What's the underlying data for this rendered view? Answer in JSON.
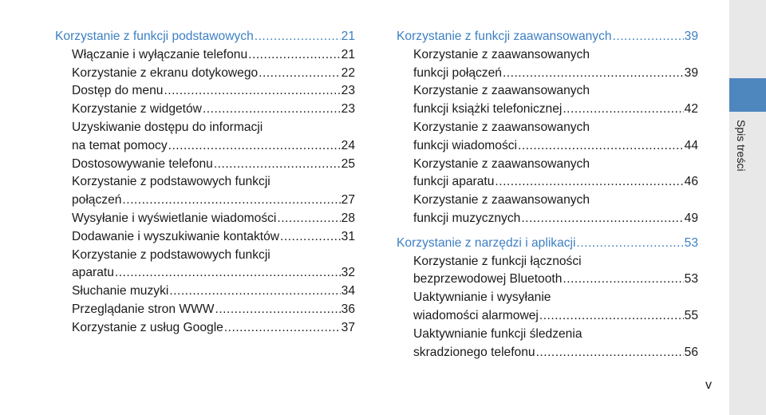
{
  "toc": {
    "left": [
      {
        "kind": "section",
        "lines": [
          {
            "text": "Korzystanie z funkcji podstawowych",
            "page": "21"
          }
        ]
      },
      {
        "kind": "entry",
        "lines": [
          {
            "text": "Włączanie i wyłączanie telefonu",
            "page": "21"
          }
        ]
      },
      {
        "kind": "entry",
        "lines": [
          {
            "text": "Korzystanie z ekranu dotykowego",
            "page": "22"
          }
        ]
      },
      {
        "kind": "entry",
        "lines": [
          {
            "text": "Dostęp do menu",
            "page": "23"
          }
        ]
      },
      {
        "kind": "entry",
        "lines": [
          {
            "text": "Korzystanie z widgetów",
            "page": "23"
          }
        ]
      },
      {
        "kind": "entry",
        "lines": [
          {
            "text": "Uzyskiwanie dostępu do informacji"
          },
          {
            "text": "na temat pomocy",
            "page": "24"
          }
        ]
      },
      {
        "kind": "entry",
        "lines": [
          {
            "text": "Dostosowywanie telefonu",
            "page": "25"
          }
        ]
      },
      {
        "kind": "entry",
        "lines": [
          {
            "text": "Korzystanie z podstawowych funkcji"
          },
          {
            "text": "połączeń",
            "page": "27"
          }
        ]
      },
      {
        "kind": "entry",
        "lines": [
          {
            "text": "Wysyłanie i wyświetlanie wiadomości",
            "page": "28"
          }
        ]
      },
      {
        "kind": "entry",
        "lines": [
          {
            "text": "Dodawanie i wyszukiwanie kontaktów",
            "page": "31"
          }
        ]
      },
      {
        "kind": "entry",
        "lines": [
          {
            "text": "Korzystanie z podstawowych funkcji"
          },
          {
            "text": "aparatu",
            "page": "32"
          }
        ]
      },
      {
        "kind": "entry",
        "lines": [
          {
            "text": "Słuchanie muzyki",
            "page": "34"
          }
        ]
      },
      {
        "kind": "entry",
        "lines": [
          {
            "text": "Przeglądanie stron WWW",
            "page": "36"
          }
        ]
      },
      {
        "kind": "entry",
        "lines": [
          {
            "text": "Korzystanie z usług Google",
            "page": "37"
          }
        ]
      }
    ],
    "right": [
      {
        "kind": "section",
        "lines": [
          {
            "text": "Korzystanie z funkcji zaawansowanych",
            "page": "39"
          }
        ]
      },
      {
        "kind": "entry",
        "lines": [
          {
            "text": "Korzystanie z zaawansowanych"
          },
          {
            "text": "funkcji połączeń",
            "page": "39"
          }
        ]
      },
      {
        "kind": "entry",
        "lines": [
          {
            "text": "Korzystanie z zaawansowanych"
          },
          {
            "text": "funkcji książki telefonicznej",
            "page": "42"
          }
        ]
      },
      {
        "kind": "entry",
        "lines": [
          {
            "text": "Korzystanie z zaawansowanych"
          },
          {
            "text": "funkcji wiadomości",
            "page": "44"
          }
        ]
      },
      {
        "kind": "entry",
        "lines": [
          {
            "text": "Korzystanie z zaawansowanych"
          },
          {
            "text": "funkcji aparatu",
            "page": "46"
          }
        ]
      },
      {
        "kind": "entry",
        "lines": [
          {
            "text": "Korzystanie z zaawansowanych"
          },
          {
            "text": "funkcji muzycznych",
            "page": "49"
          }
        ]
      },
      {
        "kind": "gap"
      },
      {
        "kind": "section",
        "lines": [
          {
            "text": "Korzystanie z narzędzi i aplikacji",
            "page": "53"
          }
        ]
      },
      {
        "kind": "entry",
        "lines": [
          {
            "text": "Korzystanie z funkcji łączności"
          },
          {
            "text": "bezprzewodowej Bluetooth",
            "page": "53"
          }
        ]
      },
      {
        "kind": "entry",
        "lines": [
          {
            "text": "Uaktywnianie i wysyłanie"
          },
          {
            "text": "wiadomości alarmowej",
            "page": "55"
          }
        ]
      },
      {
        "kind": "entry",
        "lines": [
          {
            "text": "Uaktywnianie funkcji śledzenia"
          },
          {
            "text": "skradzionego telefonu",
            "page": "56"
          }
        ]
      }
    ]
  },
  "side_tab": {
    "label": "Spis treści",
    "color": "#4e86be"
  },
  "page_number": "v",
  "colors": {
    "section_heading": "#3d7fc3",
    "text": "#1a1a1a"
  }
}
